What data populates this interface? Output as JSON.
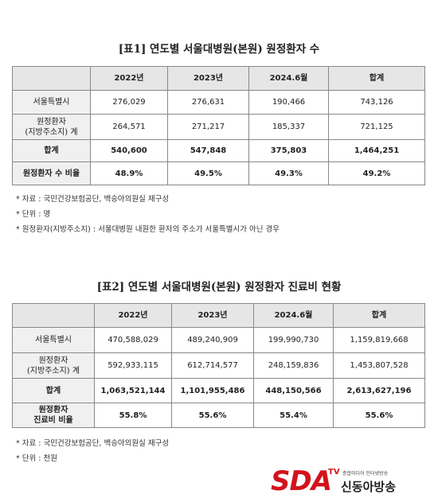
{
  "tables": [
    {
      "title": "[표1] 연도별 서울대병원(본원) 원정환자 수",
      "columns": [
        "2022년",
        "2023년",
        "2024.6월",
        "합계"
      ],
      "rows": [
        {
          "label": [
            "서울특별시"
          ],
          "values": [
            "276,029",
            "276,631",
            "190,466",
            "743,126"
          ]
        },
        {
          "label": [
            "원정환자",
            "(지방주소지) 계"
          ],
          "values": [
            "264,571",
            "271,217",
            "185,337",
            "721,125"
          ]
        },
        {
          "label": [
            "합계"
          ],
          "values": [
            "540,600",
            "547,848",
            "375,803",
            "1,464,251"
          ]
        },
        {
          "label": [
            "원정환자 수 비율"
          ],
          "values": [
            "48.9%",
            "49.5%",
            "49.3%",
            "49.2%"
          ]
        }
      ],
      "notes": [
        "* 자료 : 국민건강보험공단, 백승아의원실 재구성",
        "* 단위 : 명",
        "* 원정환자(지방주소지) : 서울대병원 내원한 환자의 주소가 서울특별시가 아닌 경우"
      ]
    },
    {
      "title": "[표2] 연도별 서울대병원(본원) 원정환자 진료비 현황",
      "columns": [
        "2022년",
        "2023년",
        "2024.6월",
        "합계"
      ],
      "rows": [
        {
          "label": [
            "서울특별시"
          ],
          "values": [
            "470,588,029",
            "489,240,909",
            "199,990,730",
            "1,159,819,668"
          ]
        },
        {
          "label": [
            "원정환자",
            "(지방주소지) 계"
          ],
          "values": [
            "592,933,115",
            "612,714,577",
            "248,159,836",
            "1,453,807,528"
          ]
        },
        {
          "label": [
            "합계"
          ],
          "values": [
            "1,063,521,144",
            "1,101,955,486",
            "448,150,566",
            "2,613,627,196"
          ]
        },
        {
          "label": [
            "원정환자",
            "진료비 비율"
          ],
          "values": [
            "55.8%",
            "55.6%",
            "55.4%",
            "55.6%"
          ]
        }
      ],
      "notes": [
        "* 자료 : 국민건강보험공단, 백승아의원실 재구성",
        "* 단위 : 천원"
      ]
    }
  ],
  "logo": {
    "brand": "SDA",
    "suffix": "TV",
    "tagline": "종합미디어 인터넷방송",
    "name": "신동아방송"
  }
}
